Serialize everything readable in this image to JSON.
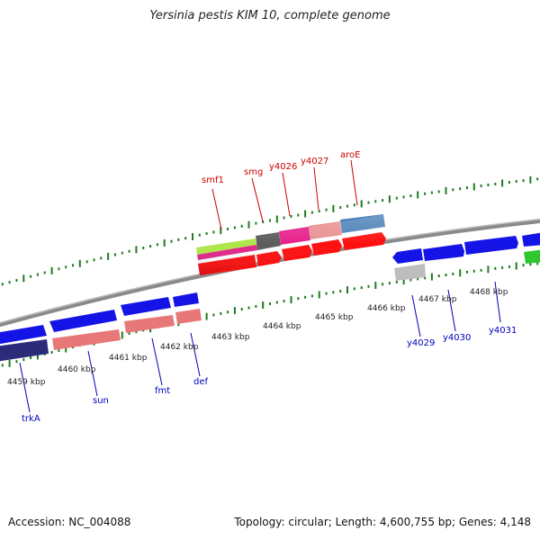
{
  "title": "Yersinia pestis KIM 10, complete genome",
  "footer": {
    "accession": "Accession: NC_004088",
    "summary": "Topology: circular; Length: 4,600,755 bp; Genes: 4,148"
  },
  "colors": {
    "backbone": "#888888",
    "tick": "#1e7b1e",
    "upper_label": "#cc0000",
    "lower_label": "#0000bb",
    "kbp_label": "#222222"
  },
  "scale_labels": [
    {
      "id": "4459",
      "text": "4459 kbp"
    },
    {
      "id": "4460",
      "text": "4460 kbp"
    },
    {
      "id": "4461",
      "text": "4461 kbp"
    },
    {
      "id": "4462",
      "text": "4462 kbp"
    },
    {
      "id": "4463",
      "text": "4463 kbp"
    },
    {
      "id": "4464",
      "text": "4464 kbp"
    },
    {
      "id": "4465",
      "text": "4465 kbp"
    },
    {
      "id": "4466",
      "text": "4466 kbp"
    },
    {
      "id": "4467",
      "text": "4467 kbp"
    },
    {
      "id": "4468",
      "text": "4468 kbp"
    }
  ],
  "gene_labels_upper": [
    "smf1",
    "smg",
    "y4026",
    "y4027",
    "aroE"
  ],
  "gene_labels_lower": [
    "trkA",
    "sun",
    "fmt",
    "def",
    "y4029",
    "y4030",
    "y4031"
  ]
}
